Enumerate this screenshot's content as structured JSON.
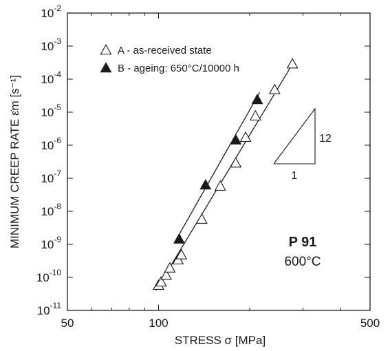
{
  "chart_data": {
    "type": "scatter",
    "xlabel": "STRESS  σ  [MPa]",
    "ylabel": "MINIMUM CREEP RATE  ε̇m  [s⁻¹]",
    "x_scale": "log",
    "y_scale": "log",
    "xlim": [
      50,
      500
    ],
    "ylim": [
      1e-11,
      0.01
    ],
    "x_ticks": [
      {
        "value": 50,
        "label": "50"
      },
      {
        "value": 100,
        "label": "100"
      },
      {
        "value": 500,
        "label": "500"
      }
    ],
    "y_ticks": [
      {
        "value": 1e-11,
        "exp": "-11"
      },
      {
        "value": 1e-10,
        "exp": "-10"
      },
      {
        "value": 1e-09,
        "exp": "-9"
      },
      {
        "value": 1e-08,
        "exp": "-8"
      },
      {
        "value": 1e-07,
        "exp": "-7"
      },
      {
        "value": 1e-06,
        "exp": "-6"
      },
      {
        "value": 1e-05,
        "exp": "-5"
      },
      {
        "value": 0.0001,
        "exp": "-4"
      },
      {
        "value": 0.001,
        "exp": "-3"
      },
      {
        "value": 0.01,
        "exp": "-2"
      }
    ],
    "y_tick_base": "10",
    "grid": false,
    "legend_position": "top-left",
    "series": [
      {
        "name": "A - as-received state",
        "marker": "open-triangle",
        "points": [
          [
            100,
            6e-11
          ],
          [
            102,
            7.5e-11
          ],
          [
            106,
            1.2e-10
          ],
          [
            109,
            2e-10
          ],
          [
            116,
            3.5e-10
          ],
          [
            119,
            5e-10
          ],
          [
            139,
            6e-09
          ],
          [
            160,
            6e-08
          ],
          [
            180,
            3e-07
          ],
          [
            194,
            1.8e-06
          ],
          [
            209,
            8e-06
          ],
          [
            242,
            5e-05
          ],
          [
            277,
            0.0003
          ]
        ],
        "fit_line": [
          [
            98,
            4e-11
          ],
          [
            278,
            0.0003
          ]
        ]
      },
      {
        "name": "B - ageing: 650°C/10000 h",
        "marker": "filled-triangle",
        "points": [
          [
            117,
            1.5e-09
          ],
          [
            143,
            6.5e-08
          ],
          [
            180,
            1.5e-06
          ],
          [
            212,
            2.5e-05
          ]
        ],
        "fit_line": [
          [
            115,
            1.5e-09
          ],
          [
            216,
            4e-05
          ]
        ]
      }
    ],
    "slope_annotation": {
      "rise": "12",
      "run": "1"
    },
    "material": "P 91",
    "temperature": "600°C"
  }
}
